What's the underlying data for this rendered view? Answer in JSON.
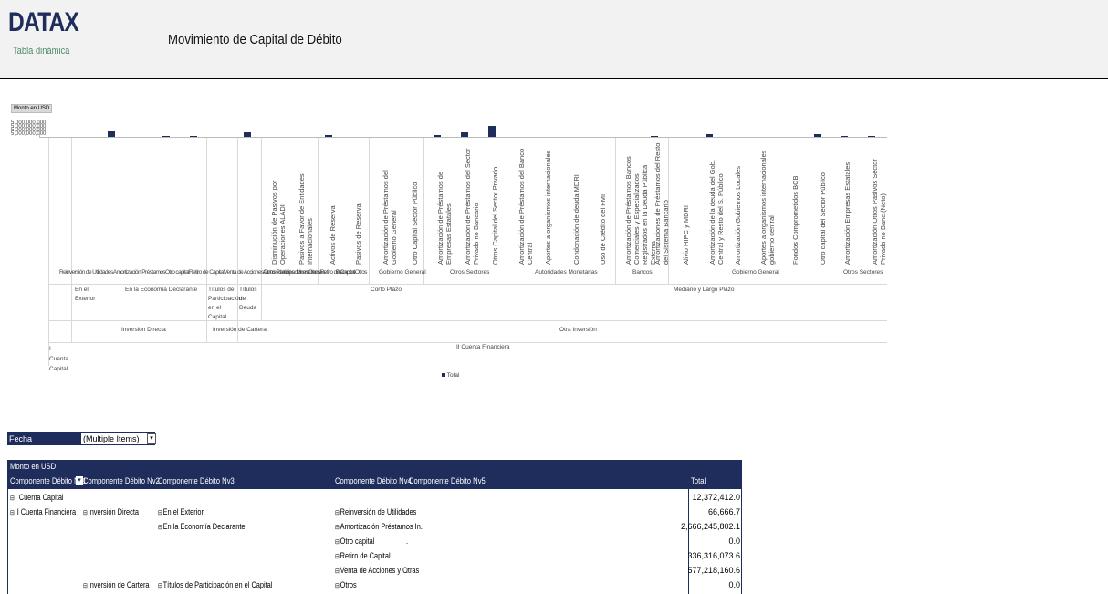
{
  "header": {
    "logo": "DATAX",
    "logo_subtitle": "Tabla dinámica",
    "report_title": "Movimiento de Capital de Débito"
  },
  "chart": {
    "measure_badge": "Monto en USD",
    "y_ticks_label": "5,000,000,000",
    "legend_label": "Total",
    "leaf_labels": [
      "Disminución de Pasivos por Operaciones ALADI",
      "Pasivos a Favor de Entidades Internacionales",
      "Activos de Reserva",
      "Pasivos de Reserva",
      "Amortización de Préstamos del Gobierno General",
      "Otro Capital Sector Público",
      "Amortización de Préstamos de Empresas Estatales",
      "Amortización de Préstamos del Sector Privado no Bancario",
      "Otros Capital del Sector Privado",
      "Amortización de Préstamos del Banco Central",
      "Aportes a organismos internacionales",
      "Condonación de deuda MDRI",
      "Uso de Crédito del FMI",
      "Amortización de Préstamos Bancos Comerciales y Especializados Registrados en la Deuda Pública Externa",
      "Amortizaciones de Préstamos del Resto del Sistema Bancario",
      "Alivio HIPC y MDRI",
      "Amortización de la deuda del Gob. Central y Resto del S. Público",
      "Amortización Gobiernos Locales",
      "Aportes a organismos internacionales gobierno central",
      "Fondos Comprometidos BCB",
      "Otro capital del Sector Público",
      "Amortización Empresas Estatales",
      "Amortización Otros Pasivos Sector Privado no Banc.(Neto)"
    ],
    "level3_short": [
      "Reinversión de Utilidades",
      "Amortización Préstamos",
      "Otro capital",
      "Retiro de Capital",
      "Venta de Acciones",
      "Otros Participaciones",
      "Otros",
      "Retiro de Capital",
      "Otros"
    ],
    "level3_groups": [
      "Autoridades Monetarias",
      "Bancos",
      "Gobierno General",
      "Otros Sectores",
      "Autoridades Monetarias",
      "Bancos",
      "Gobierno General",
      "Otros Sectores"
    ],
    "level2_groups": [
      "En el Exterior",
      "En la Economía Declarante",
      "Títulos de Participación en el Capital",
      "Títulos de Deuda",
      "Corto Plazo",
      "Mediano y Largo Plazo"
    ],
    "level1_groups": [
      "Inversión Directa",
      "Inversión de Cartera",
      "Otra Inversión"
    ],
    "level0_groups": [
      "I Cuenta Capital",
      "II Cuenta Financiera"
    ]
  },
  "filter": {
    "label": "Fecha",
    "value": "(Multiple Items)"
  },
  "pivot": {
    "measure": "Monto en USD",
    "columns": [
      "Componente Débito Nv1",
      "Componente Débito Nv2",
      "Componente Débito Nv3",
      "Componente Débito Nv4",
      "Componente Débito Nv5",
      "Total"
    ],
    "rows": [
      {
        "nv1": "I Cuenta Capital",
        "nv2": "",
        "nv3": "",
        "nv4": "",
        "nv5": "",
        "total": "12,372,412.0"
      },
      {
        "nv1": "II Cuenta Financiera",
        "nv2": "Inversión Directa",
        "nv3": "En el Exterior",
        "nv4": "Reinversión de Utilidades",
        "nv5": ".",
        "total": "66,666.7"
      },
      {
        "nv1": "",
        "nv2": "",
        "nv3": "En la Economía Declarante",
        "nv4": "Amortización Préstamos In.",
        "nv5": ".",
        "total": "2,666,245,802.1"
      },
      {
        "nv1": "",
        "nv2": "",
        "nv3": "",
        "nv4": "Otro capital",
        "nv5": ".",
        "total": "0.0"
      },
      {
        "nv1": "",
        "nv2": "",
        "nv3": "",
        "nv4": "Retiro de Capital",
        "nv5": ".",
        "total": "336,316,073.6"
      },
      {
        "nv1": "",
        "nv2": "",
        "nv3": "",
        "nv4": "Venta de Acciones y Otras",
        "nv5": ".",
        "total": "577,218,160.6"
      },
      {
        "nv1": "",
        "nv2": "Inversión de Cartera",
        "nv3": "Títulos de Participación en el Capital",
        "nv4": "Otros",
        "nv5": "",
        "total": "0.0"
      }
    ]
  },
  "colors": {
    "header_bg": "#f2f2f2",
    "accent": "#1f2d5c",
    "logo_sub": "#4f8a6a"
  }
}
